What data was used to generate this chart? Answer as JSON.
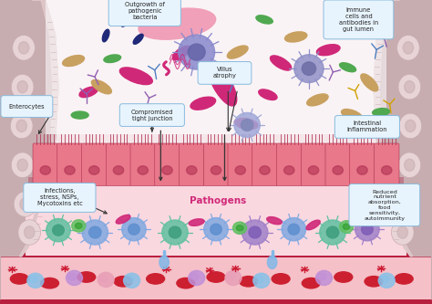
{
  "background_color": "#fce8ee",
  "labels": {
    "outgrowth": "Outgrowth of\npathogenic\nbacteria",
    "enterocytes": "Enterocytes",
    "villus": "Villus\natrophy",
    "tight_junction": "Compromised\ntight junction",
    "immune": "Immune\ncells and\nantibodies in\ngut lumen",
    "intestinal": "Intestinal\ninflammation",
    "infections": "Infections,\nstress, NSPs,\nMycotoxins etc",
    "pathogens": "Pathogens",
    "reduced": "Reduced\nnutrient\nabsorption,\nfood\nsensitivity,\nautoimmunity"
  },
  "colors": {
    "outer_bg": "#f5e6ea",
    "gut_wall": "#c8adb0",
    "gut_wall_light": "#ddc5c8",
    "gut_wall_inner": "#e8d4d7",
    "lumen_bg": "#fdf0f3",
    "epithelium_fill": "#d44060",
    "epithelium_light": "#e8788a",
    "epithelium_border": "#b03050",
    "submucosa_bg": "#fad8e0",
    "blood_bg": "#f5c0c8",
    "blood_border_top": "#b82040",
    "blood_border_bot": "#b82040",
    "label_fill": "#e8f4fd",
    "label_stroke": "#88bbdd",
    "bacteria_pink_large": "#f0a0b8",
    "bacteria_magenta": "#d02878",
    "bacteria_green": "#50a850",
    "bacteria_tan": "#c8a060",
    "bacteria_navy": "#202878",
    "bacteria_dark_blue": "#283090",
    "cell_purple_body": "#8888cc",
    "cell_purple_nucleus": "#6666aa",
    "cell_blue_body": "#88aadd",
    "antibody_purple": "#9060b0",
    "antibody_yellow": "#d0a000",
    "antibody_blue": "#5080c0",
    "rbc_color": "#cc2030",
    "wbc_blue": "#88c0e8",
    "wbc_purple": "#c090d8",
    "wbc_pink": "#e8a0b8",
    "green_cell": "#60c060",
    "blue_cell_light": "#a0c8f0",
    "platelet_red": "#cc1830",
    "submucosal_cell_teal": "#60c0a0",
    "submucosal_cell_blue": "#80a8e0",
    "submucosal_cell_purple": "#a080c8",
    "droplet_blue": "#80b8e8",
    "text_dark": "#222222",
    "arrow_color": "#333333"
  }
}
